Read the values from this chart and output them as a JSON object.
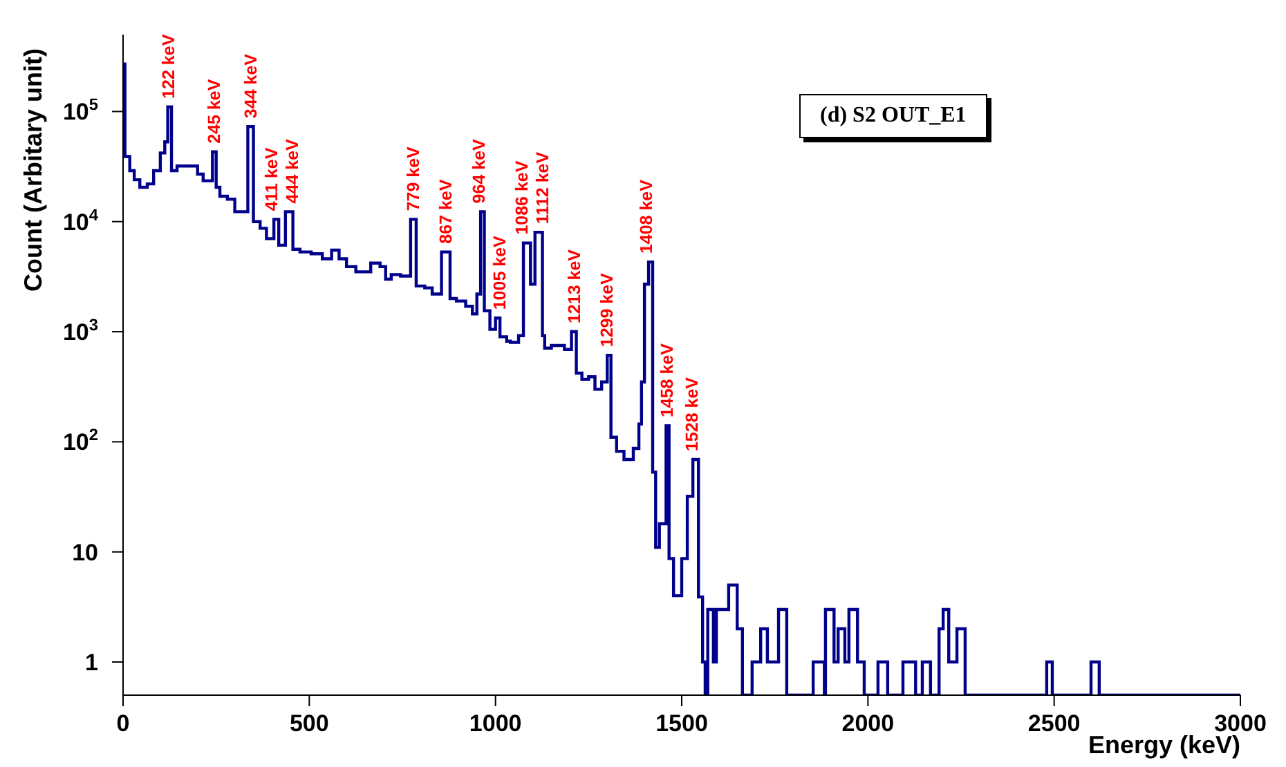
{
  "chart_data": {
    "type": "histogram",
    "title": "(d) S2 OUT_E1",
    "xlabel": "Energy (keV)",
    "ylabel": "Count (Arbitary unit)",
    "color": "#00008b",
    "bins": [
      0,
      5,
      18,
      30,
      45,
      65,
      82,
      100,
      112,
      120,
      130,
      145,
      200,
      215,
      240,
      250,
      260,
      280,
      300,
      335,
      350,
      368,
      385,
      405,
      418,
      436,
      456,
      475,
      505,
      535,
      560,
      580,
      600,
      625,
      665,
      690,
      705,
      720,
      745,
      772,
      787,
      810,
      830,
      855,
      878,
      895,
      920,
      938,
      950,
      960,
      970,
      985,
      1000,
      1012,
      1030,
      1040,
      1062,
      1075,
      1094,
      1106,
      1126,
      1132,
      1150,
      1185,
      1204,
      1217,
      1232,
      1250,
      1267,
      1285,
      1300,
      1310,
      1325,
      1345,
      1370,
      1385,
      1392,
      1400,
      1411,
      1422,
      1430,
      1440,
      1458,
      1466,
      1478,
      1500,
      1515,
      1530,
      1545,
      1556,
      1563,
      1570,
      1585,
      1593,
      1626,
      1649,
      1663,
      1689,
      1712,
      1730,
      1760,
      1782,
      1853,
      1883,
      1886,
      1909,
      1920,
      1938,
      1949,
      1972,
      1990,
      2027,
      2053,
      2094,
      2128,
      2146,
      2168,
      2191,
      2202,
      2217,
      2239,
      2261,
      2480,
      2495,
      2599,
      2621,
      3000
    ],
    "values": [
      270000,
      39000,
      29000,
      24000,
      20500,
      22000,
      29000,
      42000,
      53000,
      110000,
      29000,
      32000,
      27000,
      23500,
      43000,
      20500,
      17000,
      16000,
      12300,
      73000,
      10000,
      8700,
      7000,
      10500,
      6100,
      12300,
      5600,
      5300,
      5100,
      4600,
      5500,
      4600,
      3900,
      3500,
      4200,
      3900,
      3000,
      3300,
      3200,
      10500,
      2600,
      2500,
      2200,
      5300,
      2000,
      1900,
      1700,
      1450,
      2200,
      12300,
      1550,
      1050,
      1330,
      900,
      820,
      800,
      920,
      6400,
      2700,
      8000,
      920,
      710,
      750,
      690,
      1000,
      420,
      370,
      390,
      300,
      350,
      610,
      110,
      82,
      69,
      87,
      145,
      350,
      2700,
      4300,
      53,
      11,
      18,
      140,
      8.7,
      4,
      8.7,
      32,
      69,
      3.9,
      1,
      null,
      3,
      1,
      3,
      5,
      2,
      null,
      1,
      2,
      1,
      3,
      null,
      1,
      null,
      3,
      1,
      2,
      1,
      3,
      1,
      null,
      1,
      null,
      1,
      null,
      1,
      null,
      2,
      3,
      1,
      2,
      null,
      1,
      null,
      1,
      null
    ],
    "xlim": [
      0,
      3000
    ],
    "xticks": [
      0,
      500,
      1000,
      1500,
      2000,
      2500,
      3000
    ],
    "ylim": [
      0.5,
      500000
    ],
    "yticks": [
      1,
      10,
      {
        "value": 100,
        "label": "10$^{2}$"
      },
      {
        "value": 1000,
        "label": "10$^{3}$"
      },
      {
        "value": 10000,
        "label": "10$^{4}$"
      },
      {
        "value": 100000,
        "label": "10$^{5}$"
      }
    ],
    "log": "y",
    "annotations": [
      {
        "text": "122 keV",
        "x": 122,
        "y": 110000
      },
      {
        "text": "245 keV",
        "x": 245,
        "y": 43000
      },
      {
        "text": "344 keV",
        "x": 344,
        "y": 73000
      },
      {
        "text": "411 keV",
        "x": 411,
        "y": 10500
      },
      {
        "text": "444 keV",
        "x": 444,
        "y": 12300
      },
      {
        "text": "779 keV",
        "x": 779,
        "y": 10500
      },
      {
        "text": "867 keV",
        "x": 867,
        "y": 5300
      },
      {
        "text": "964 keV",
        "x": 964,
        "y": 12300
      },
      {
        "text": "1005 keV",
        "x": 1005,
        "y": 1330
      },
      {
        "text": "1086 keV",
        "x": 1086,
        "y": 6400
      },
      {
        "text": "1112 keV",
        "x": 1112,
        "y": 8000
      },
      {
        "text": "1213 keV",
        "x": 1213,
        "y": 1000
      },
      {
        "text": "1299 keV",
        "x": 1299,
        "y": 610
      },
      {
        "text": "1408 keV",
        "x": 1408,
        "y": 4300
      },
      {
        "text": "1458 keV",
        "x": 1458,
        "y": 140
      },
      {
        "text": "1528 keV",
        "x": 1528,
        "y": 69
      }
    ]
  }
}
